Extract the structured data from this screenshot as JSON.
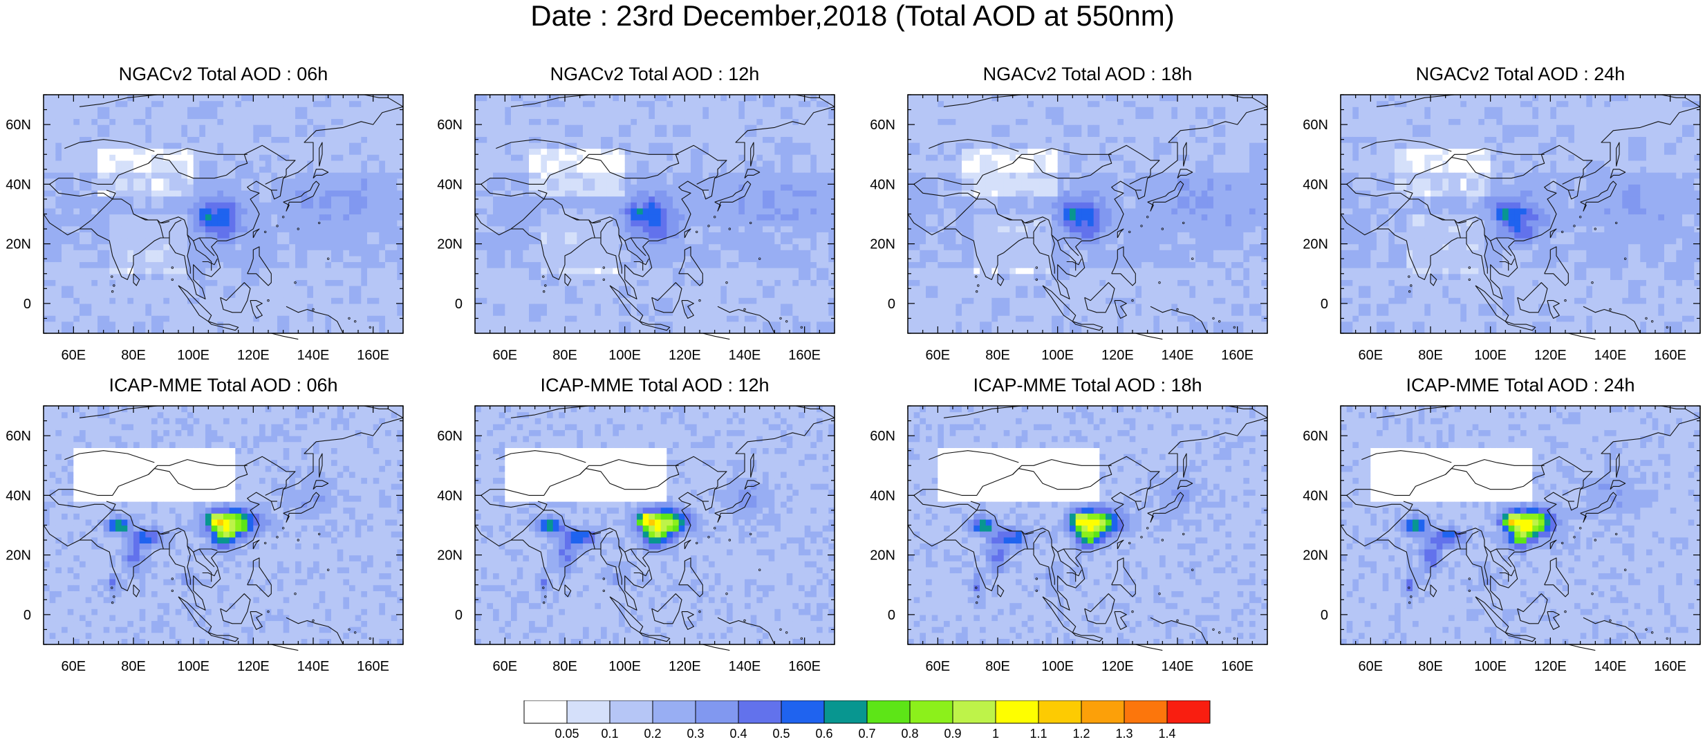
{
  "main_title": "Date : 23rd December,2018 (Total AOD at 550nm)",
  "map": {
    "lon_ticks": [
      "60E",
      "80E",
      "100E",
      "120E",
      "140E",
      "160E"
    ],
    "lon_values": [
      60,
      80,
      100,
      120,
      140,
      160
    ],
    "lat_ticks": [
      "60N",
      "40N",
      "20N",
      "0"
    ],
    "lat_values": [
      60,
      40,
      20,
      0
    ],
    "lon_range": [
      50,
      170
    ],
    "lat_range": [
      -10,
      70
    ]
  },
  "panels": [
    {
      "title": "NGACv2 Total AOD : 06h",
      "model": "ngac"
    },
    {
      "title": "NGACv2 Total AOD : 12h",
      "model": "ngac"
    },
    {
      "title": "NGACv2 Total AOD : 18h",
      "model": "ngac"
    },
    {
      "title": "NGACv2 Total AOD : 24h",
      "model": "ngac"
    },
    {
      "title": "ICAP-MME Total AOD : 06h",
      "model": "icap"
    },
    {
      "title": "ICAP-MME Total AOD : 12h",
      "model": "icap"
    },
    {
      "title": "ICAP-MME Total AOD : 18h",
      "model": "icap"
    },
    {
      "title": "ICAP-MME Total AOD : 24h",
      "model": "icap"
    }
  ],
  "colorbar": {
    "labels": [
      "0.05",
      "0.1",
      "0.2",
      "0.3",
      "0.4",
      "0.5",
      "0.6",
      "0.7",
      "0.8",
      "0.9",
      "1",
      "1.1",
      "1.2",
      "1.3",
      "1.4"
    ],
    "colors": [
      "#ffffff",
      "#d5e0fa",
      "#b6c6f6",
      "#98aef3",
      "#8198f0",
      "#6272ec",
      "#1f63ef",
      "#089690",
      "#5de517",
      "#8cf01b",
      "#bef349",
      "#fefe00",
      "#fdcb02",
      "#fca009",
      "#fc760c",
      "#f91e10"
    ]
  }
}
